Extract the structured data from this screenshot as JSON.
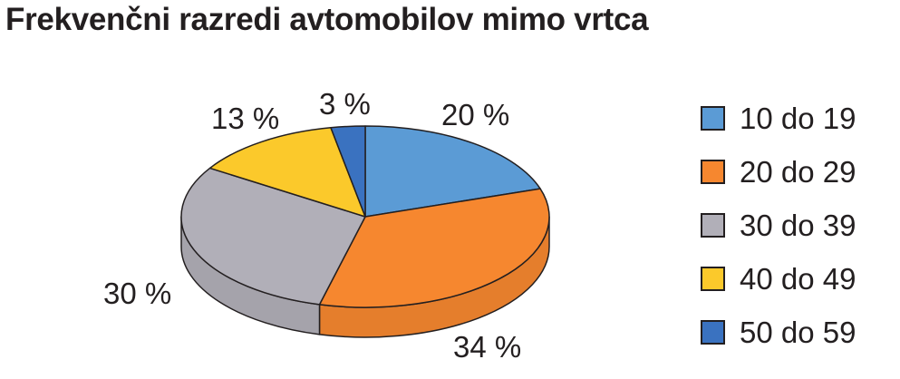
{
  "chart_data": {
    "type": "pie",
    "title": "Frekvenčni razredi avtomobilov mimo vrtca",
    "categories": [
      "10 do 19",
      "20 do 29",
      "30 do 39",
      "40 do 49",
      "50 do 59"
    ],
    "values": [
      20,
      34,
      30,
      13,
      3
    ],
    "value_labels": [
      "20 %",
      "34 %",
      "30 %",
      "13 %",
      "3 %"
    ],
    "colors": [
      "#5b9bd5",
      "#f6872f",
      "#b1afb8",
      "#fbc92b",
      "#3a72c0"
    ],
    "legend_position": "right",
    "style": "3d"
  }
}
